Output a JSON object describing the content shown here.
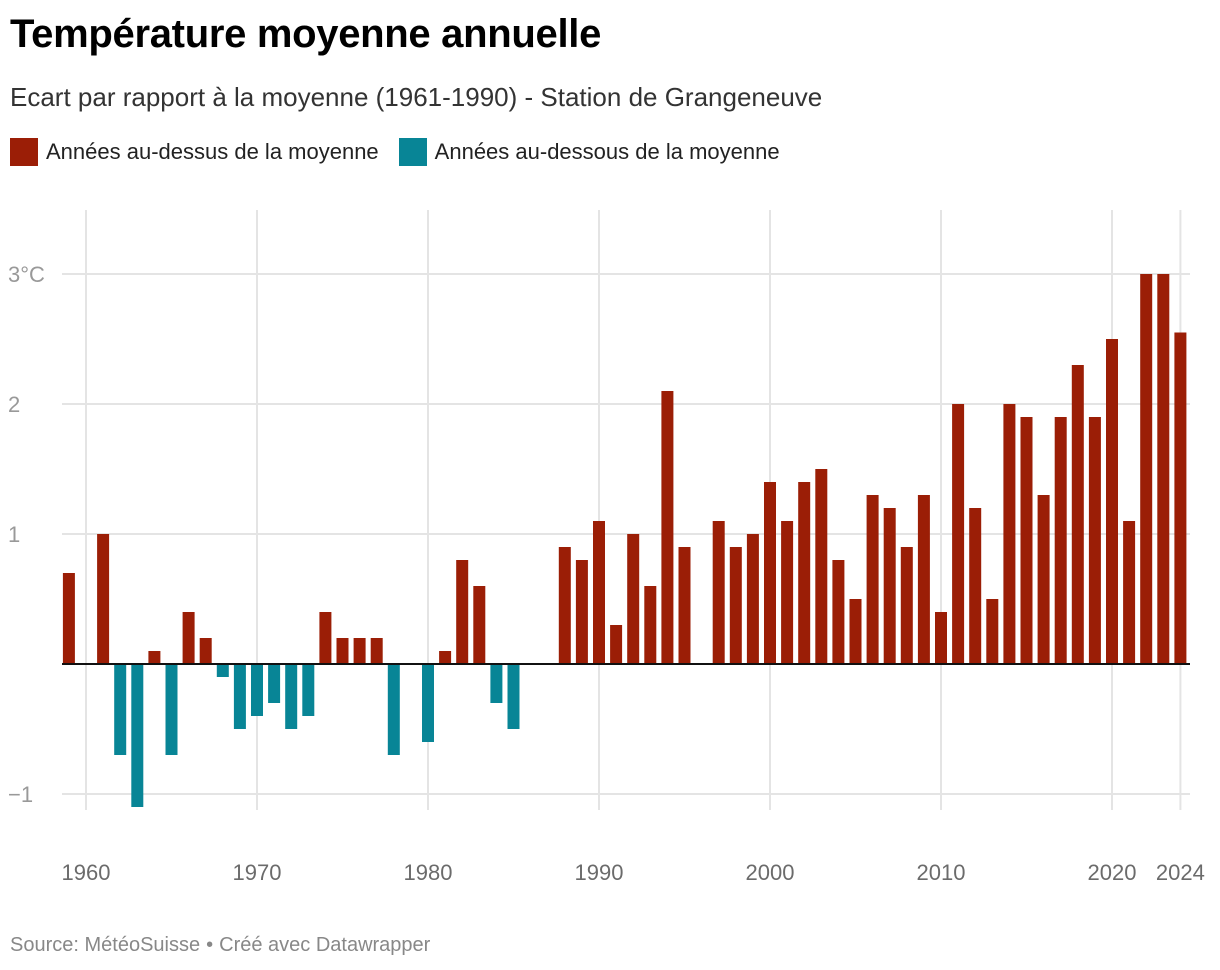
{
  "title": "Température moyenne annuelle",
  "subtitle": "Ecart par rapport à la moyenne (1961-1990) - Station de Grangeneuve",
  "legend": [
    {
      "label": "Années au-dessus de la moyenne",
      "color": "#9b1e06"
    },
    {
      "label": "Années au-dessous de la moyenne",
      "color": "#088596"
    }
  ],
  "footer": {
    "source": "Source: MétéoSuisse",
    "separator": "•",
    "credit": "Créé avec Datawrapper"
  },
  "colors": {
    "above": "#9b1e06",
    "below": "#088596",
    "grid": "#e4e4e4",
    "axis_text": "#999999",
    "x_text": "#6b6b6b"
  },
  "chart_data": {
    "type": "bar",
    "title": "Température moyenne annuelle",
    "subtitle": "Ecart par rapport à la moyenne (1961-1990) - Station de Grangeneuve",
    "xlabel": "",
    "ylabel": "",
    "y_unit": "°C",
    "ylim": [
      -1.1,
      3.5
    ],
    "xlim": [
      1958.5,
      2024.5
    ],
    "y_ticks": [
      -1,
      1,
      2,
      3
    ],
    "y_tick_labels": [
      "−1",
      "1",
      "2",
      "3°C"
    ],
    "x_ticks": [
      1960,
      1970,
      1980,
      1990,
      2000,
      2010,
      2020,
      2024
    ],
    "x_tick_labels": [
      "1960",
      "1970",
      "1980",
      "1990",
      "2000",
      "2010",
      "2020",
      "2024"
    ],
    "years": [
      1959,
      1960,
      1961,
      1962,
      1963,
      1964,
      1965,
      1966,
      1967,
      1968,
      1969,
      1970,
      1971,
      1972,
      1973,
      1974,
      1975,
      1976,
      1977,
      1978,
      1979,
      1980,
      1981,
      1982,
      1983,
      1984,
      1985,
      1986,
      1987,
      1988,
      1989,
      1990,
      1991,
      1992,
      1993,
      1994,
      1995,
      1996,
      1997,
      1998,
      1999,
      2000,
      2001,
      2002,
      2003,
      2004,
      2005,
      2006,
      2007,
      2008,
      2009,
      2010,
      2011,
      2012,
      2013,
      2014,
      2015,
      2016,
      2017,
      2018,
      2019,
      2020,
      2021,
      2022,
      2023,
      2024
    ],
    "values": [
      0.7,
      0.0,
      1.0,
      -0.7,
      -1.1,
      0.1,
      -0.7,
      0.4,
      0.2,
      -0.1,
      -0.5,
      -0.4,
      -0.3,
      -0.5,
      -0.4,
      0.4,
      0.2,
      0.2,
      0.2,
      -0.7,
      0.0,
      -0.6,
      0.1,
      0.8,
      0.6,
      -0.3,
      -0.5,
      0.0,
      0.0,
      0.9,
      0.8,
      1.1,
      0.3,
      1.0,
      0.6,
      2.1,
      0.9,
      0.0,
      1.1,
      0.9,
      1.0,
      1.4,
      1.1,
      1.4,
      1.5,
      0.8,
      0.5,
      1.3,
      1.2,
      0.9,
      1.3,
      0.4,
      2.0,
      1.2,
      0.5,
      2.0,
      1.9,
      1.3,
      1.9,
      2.3,
      1.9,
      2.5,
      1.1,
      3.0,
      3.0,
      2.55
    ]
  }
}
